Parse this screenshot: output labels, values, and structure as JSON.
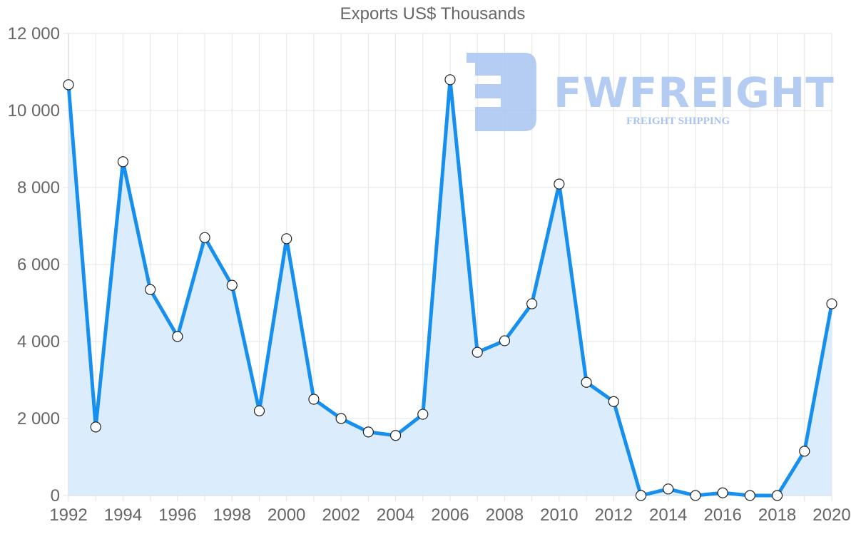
{
  "chart_data": {
    "type": "line",
    "title": "Exports US$ Thousands",
    "xlabel": "",
    "ylabel": "",
    "x": [
      1992,
      1993,
      1994,
      1995,
      1996,
      1997,
      1998,
      1999,
      2000,
      2001,
      2002,
      2003,
      2004,
      2005,
      2006,
      2007,
      2008,
      2009,
      2010,
      2011,
      2012,
      2013,
      2014,
      2015,
      2016,
      2017,
      2018,
      2019,
      2020
    ],
    "series": [
      {
        "name": "Exports US$ Thousands",
        "color": "#168fee",
        "fill": "#d9ecfc",
        "values": [
          10670,
          1780,
          8670,
          5350,
          4130,
          6700,
          5460,
          2200,
          6670,
          2500,
          2000,
          1650,
          1560,
          2110,
          10800,
          3720,
          4020,
          4980,
          8090,
          2940,
          2440,
          0,
          170,
          0,
          70,
          0,
          0,
          1150,
          4980
        ]
      }
    ],
    "ylim": [
      0,
      12000
    ],
    "yticks": [
      0,
      2000,
      4000,
      6000,
      8000,
      10000,
      12000
    ],
    "ytick_labels": [
      "0",
      "2 000",
      "4 000",
      "6 000",
      "8 000",
      "10 000",
      "12 000"
    ],
    "xticks": [
      1992,
      1994,
      1996,
      1998,
      2000,
      2002,
      2004,
      2006,
      2008,
      2010,
      2012,
      2014,
      2016,
      2018,
      2020
    ],
    "xtick_labels": [
      "1992",
      "1994",
      "1996",
      "1998",
      "2000",
      "2002",
      "2004",
      "2006",
      "2008",
      "2010",
      "2012",
      "2014",
      "2016",
      "2018",
      "2020"
    ],
    "grid": true,
    "legend": "none"
  },
  "watermark": {
    "brand": "FWFREIGHT",
    "tagline": "FREIGHT SHIPPING"
  }
}
